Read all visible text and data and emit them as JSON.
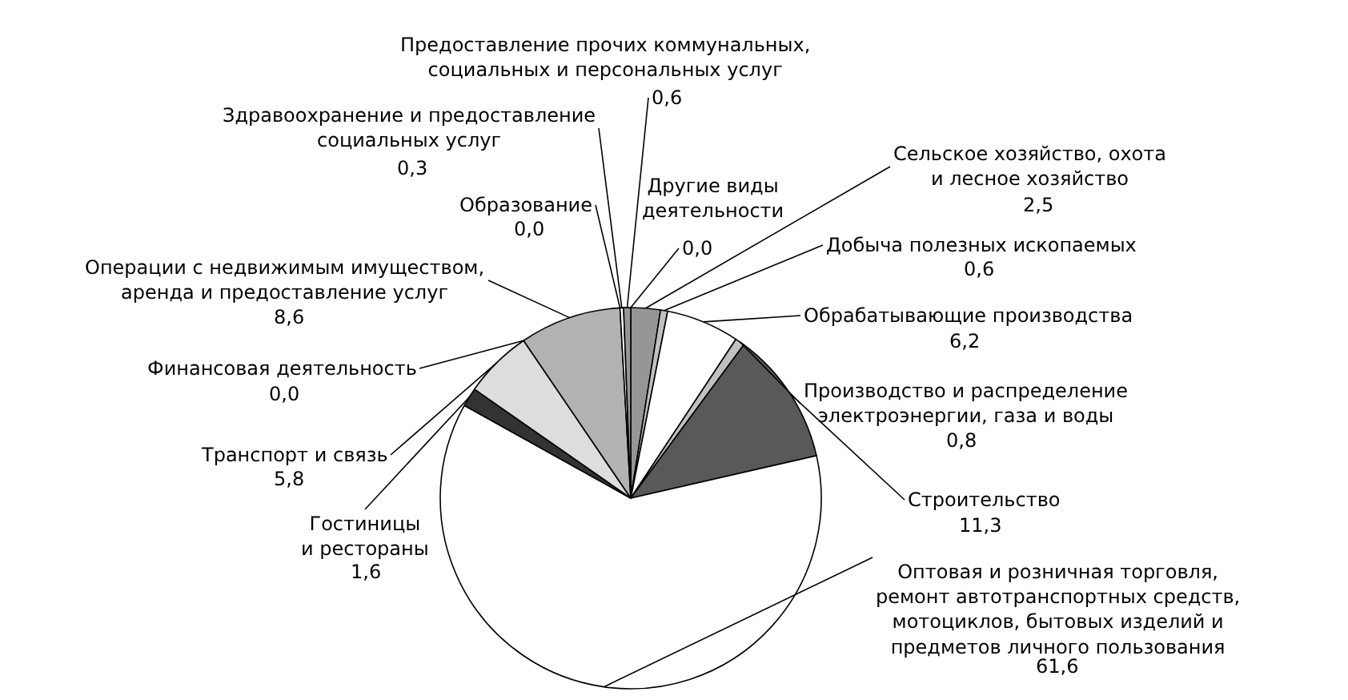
{
  "chart_data": {
    "type": "pie",
    "categories": [
      "Сельское хозяйство, охота\nи лесное хозяйство",
      "Добыча полезных ископаемых",
      "Обрабатывающие производства",
      "Производство и распределение\nэлектроэнергии, газа и воды",
      "Строительство",
      "Оптовая и розничная торговля,\nремонт автотранспортных средств,\nмотоциклов, бытовых изделий и\nпредметов личного пользования",
      "Гостиницы\nи рестораны",
      "Транспорт и связь",
      "Финансовая деятельность",
      "Операции с недвижимым имуществом,\nаренда и предоставление услуг",
      "Образование",
      "Здравоохранение и предоставление\nсоциальных услуг",
      "Предоставление прочих коммунальных,\nсоциальных и персональных услуг",
      "Другие виды\nдеятельности"
    ],
    "values": [
      2.5,
      0.6,
      6.2,
      0.8,
      11.3,
      61.6,
      1.6,
      5.8,
      0.0,
      8.6,
      0.0,
      0.3,
      0.6,
      0.0
    ],
    "value_labels": [
      "2,5",
      "0,6",
      "6,2",
      "0,8",
      "11,3",
      "61,6",
      "1,6",
      "5,8",
      "0,0",
      "8,6",
      "0,0",
      "0,3",
      "0,6",
      "0,0"
    ],
    "colors": [
      "#969696",
      "#c0c0c0",
      "#ffffff",
      "#c0c0c0",
      "#595959",
      "#ffffff",
      "#333333",
      "#dddddd",
      "#808080",
      "#b2b2b2",
      "#808080",
      "#ffffff",
      "#969696",
      "#ffffff"
    ],
    "legend": false
  }
}
